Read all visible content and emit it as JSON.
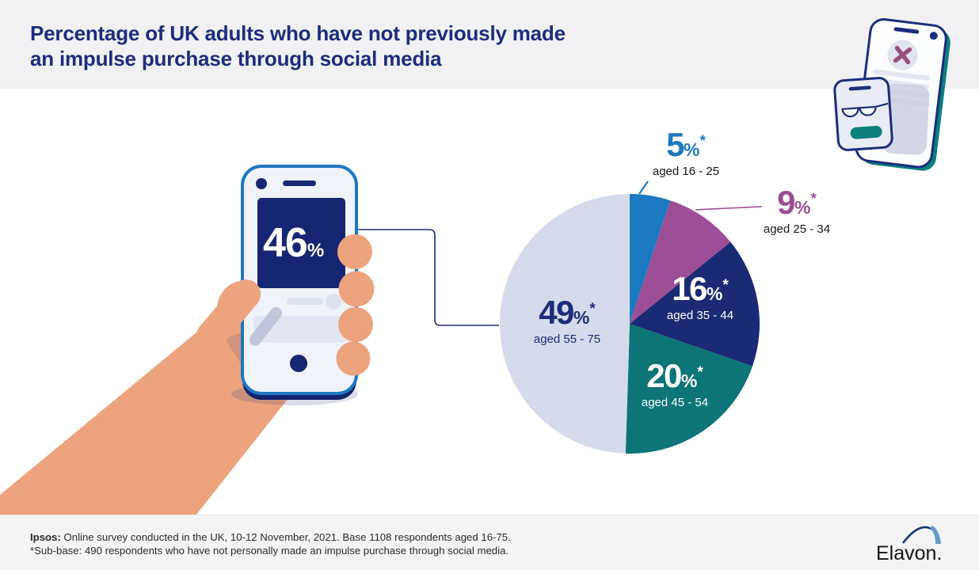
{
  "header": {
    "title_line1": "Percentage of UK adults who have not previously made",
    "title_line2": "an impulse purchase through social media"
  },
  "hero": {
    "stat_value": "46",
    "stat_unit": "%"
  },
  "chart_data": {
    "type": "pie",
    "title": "Percentage of UK adults who have not previously made an impulse purchase through social media",
    "unit": "%",
    "note_symbol": "*",
    "start_angle_deg": 0,
    "clockwise": true,
    "legend_position": "labels-on-and-around-slices",
    "slices": [
      {
        "label": "aged 16 - 25",
        "value": 5,
        "color": "#1b7ac1",
        "label_color": "#1b7ac1",
        "label_position": "outside-top"
      },
      {
        "label": "aged 25 - 34",
        "value": 9,
        "color": "#9c4f96",
        "label_color": "#9c4f96",
        "label_position": "outside-right"
      },
      {
        "label": "aged 35 - 44",
        "value": 16,
        "color": "#1b2a74",
        "label_color": "#ffffff",
        "label_position": "inside"
      },
      {
        "label": "aged 45 - 54",
        "value": 20,
        "color": "#0d7477",
        "label_color": "#ffffff",
        "label_position": "inside"
      },
      {
        "label": "aged 55 - 75",
        "value": 49,
        "color": "#d5dbec",
        "label_color": "#1b2d7d",
        "label_position": "inside"
      }
    ]
  },
  "footer": {
    "source_label": "Ipsos:",
    "source_text": " Online survey conducted in the UK, 10-12 November, 2021. Base 1108 respondents aged 16-75.",
    "subbase_text": "*Sub-base: 490 respondents who have not personally made an impulse purchase through social media.",
    "brand": "Elavon."
  },
  "colors": {
    "title": "#1b2d7d",
    "header_band": "#f1f1f3",
    "footer_band": "#f4f4f5",
    "hero_screen_navy": "#162673",
    "hero_phone_border_blue": "#1e78c0",
    "hand_skin": "#eda47e",
    "teal_accent": "#0c807d",
    "connector_line": "#1b2d7d"
  }
}
